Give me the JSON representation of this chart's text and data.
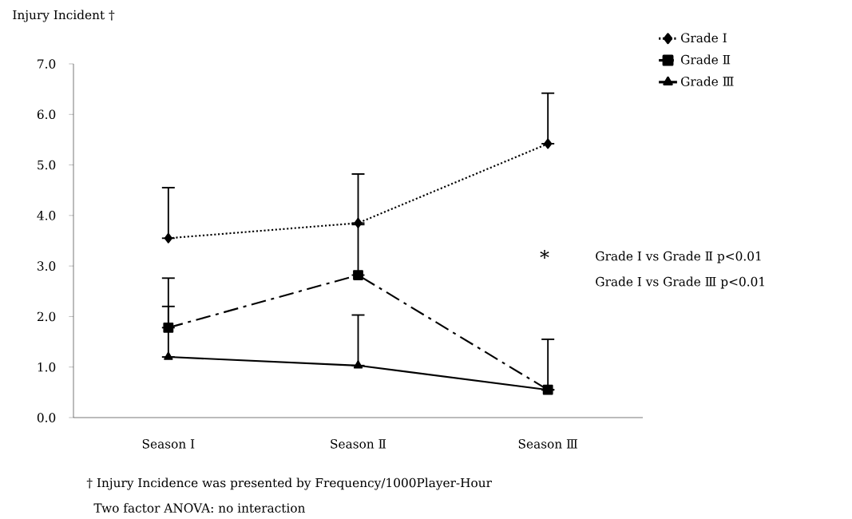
{
  "chart_data": {
    "type": "line",
    "ylabel": "Injury Incident †",
    "categories": [
      "Season Ⅰ",
      "Season Ⅱ",
      "Season Ⅲ"
    ],
    "ylim": [
      0,
      7
    ],
    "yticks": [
      {
        "value": 0,
        "label": "0.0"
      },
      {
        "value": 1,
        "label": "1.0"
      },
      {
        "value": 2,
        "label": "2.0"
      },
      {
        "value": 3,
        "label": "3.0"
      },
      {
        "value": 4,
        "label": "4.0"
      },
      {
        "value": 5,
        "label": "5.0"
      },
      {
        "value": 6,
        "label": "6.0"
      },
      {
        "value": 7,
        "label": "7.0"
      }
    ],
    "series": [
      {
        "name": "Grade Ⅰ",
        "color": "#000000",
        "marker": "diamond",
        "line_style": "dotted",
        "values": [
          3.55,
          3.85,
          5.42
        ],
        "errors": [
          [
            3.55,
            4.55
          ],
          [
            3.85,
            4.82
          ],
          [
            5.42,
            6.42
          ]
        ]
      },
      {
        "name": "Grade Ⅱ",
        "color": "#000000",
        "marker": "square",
        "line_style": "dashed",
        "values": [
          1.78,
          2.82,
          0.55
        ],
        "errors": [
          [
            1.78,
            2.76
          ],
          [
            2.82,
            3.82
          ],
          [
            0.55,
            1.55
          ]
        ]
      },
      {
        "name": "Grade Ⅲ",
        "color": "#000000",
        "marker": "triangle",
        "line_style": "solid",
        "values": [
          1.2,
          1.03,
          0.55
        ],
        "errors": [
          [
            1.2,
            2.2
          ],
          [
            1.03,
            2.03
          ],
          [
            0.55,
            0.55
          ]
        ]
      }
    ],
    "legend": "top right",
    "grid": false,
    "annotations": [
      "*",
      "Grade Ⅰ vs Grade Ⅱ   p<0.01",
      "Grade Ⅰ vs Grade Ⅲ   p<0.01",
      "†  Injury Incidence was presented by Frequency/1000Player-Hour",
      "Two factor ANOVA: no interaction"
    ]
  }
}
